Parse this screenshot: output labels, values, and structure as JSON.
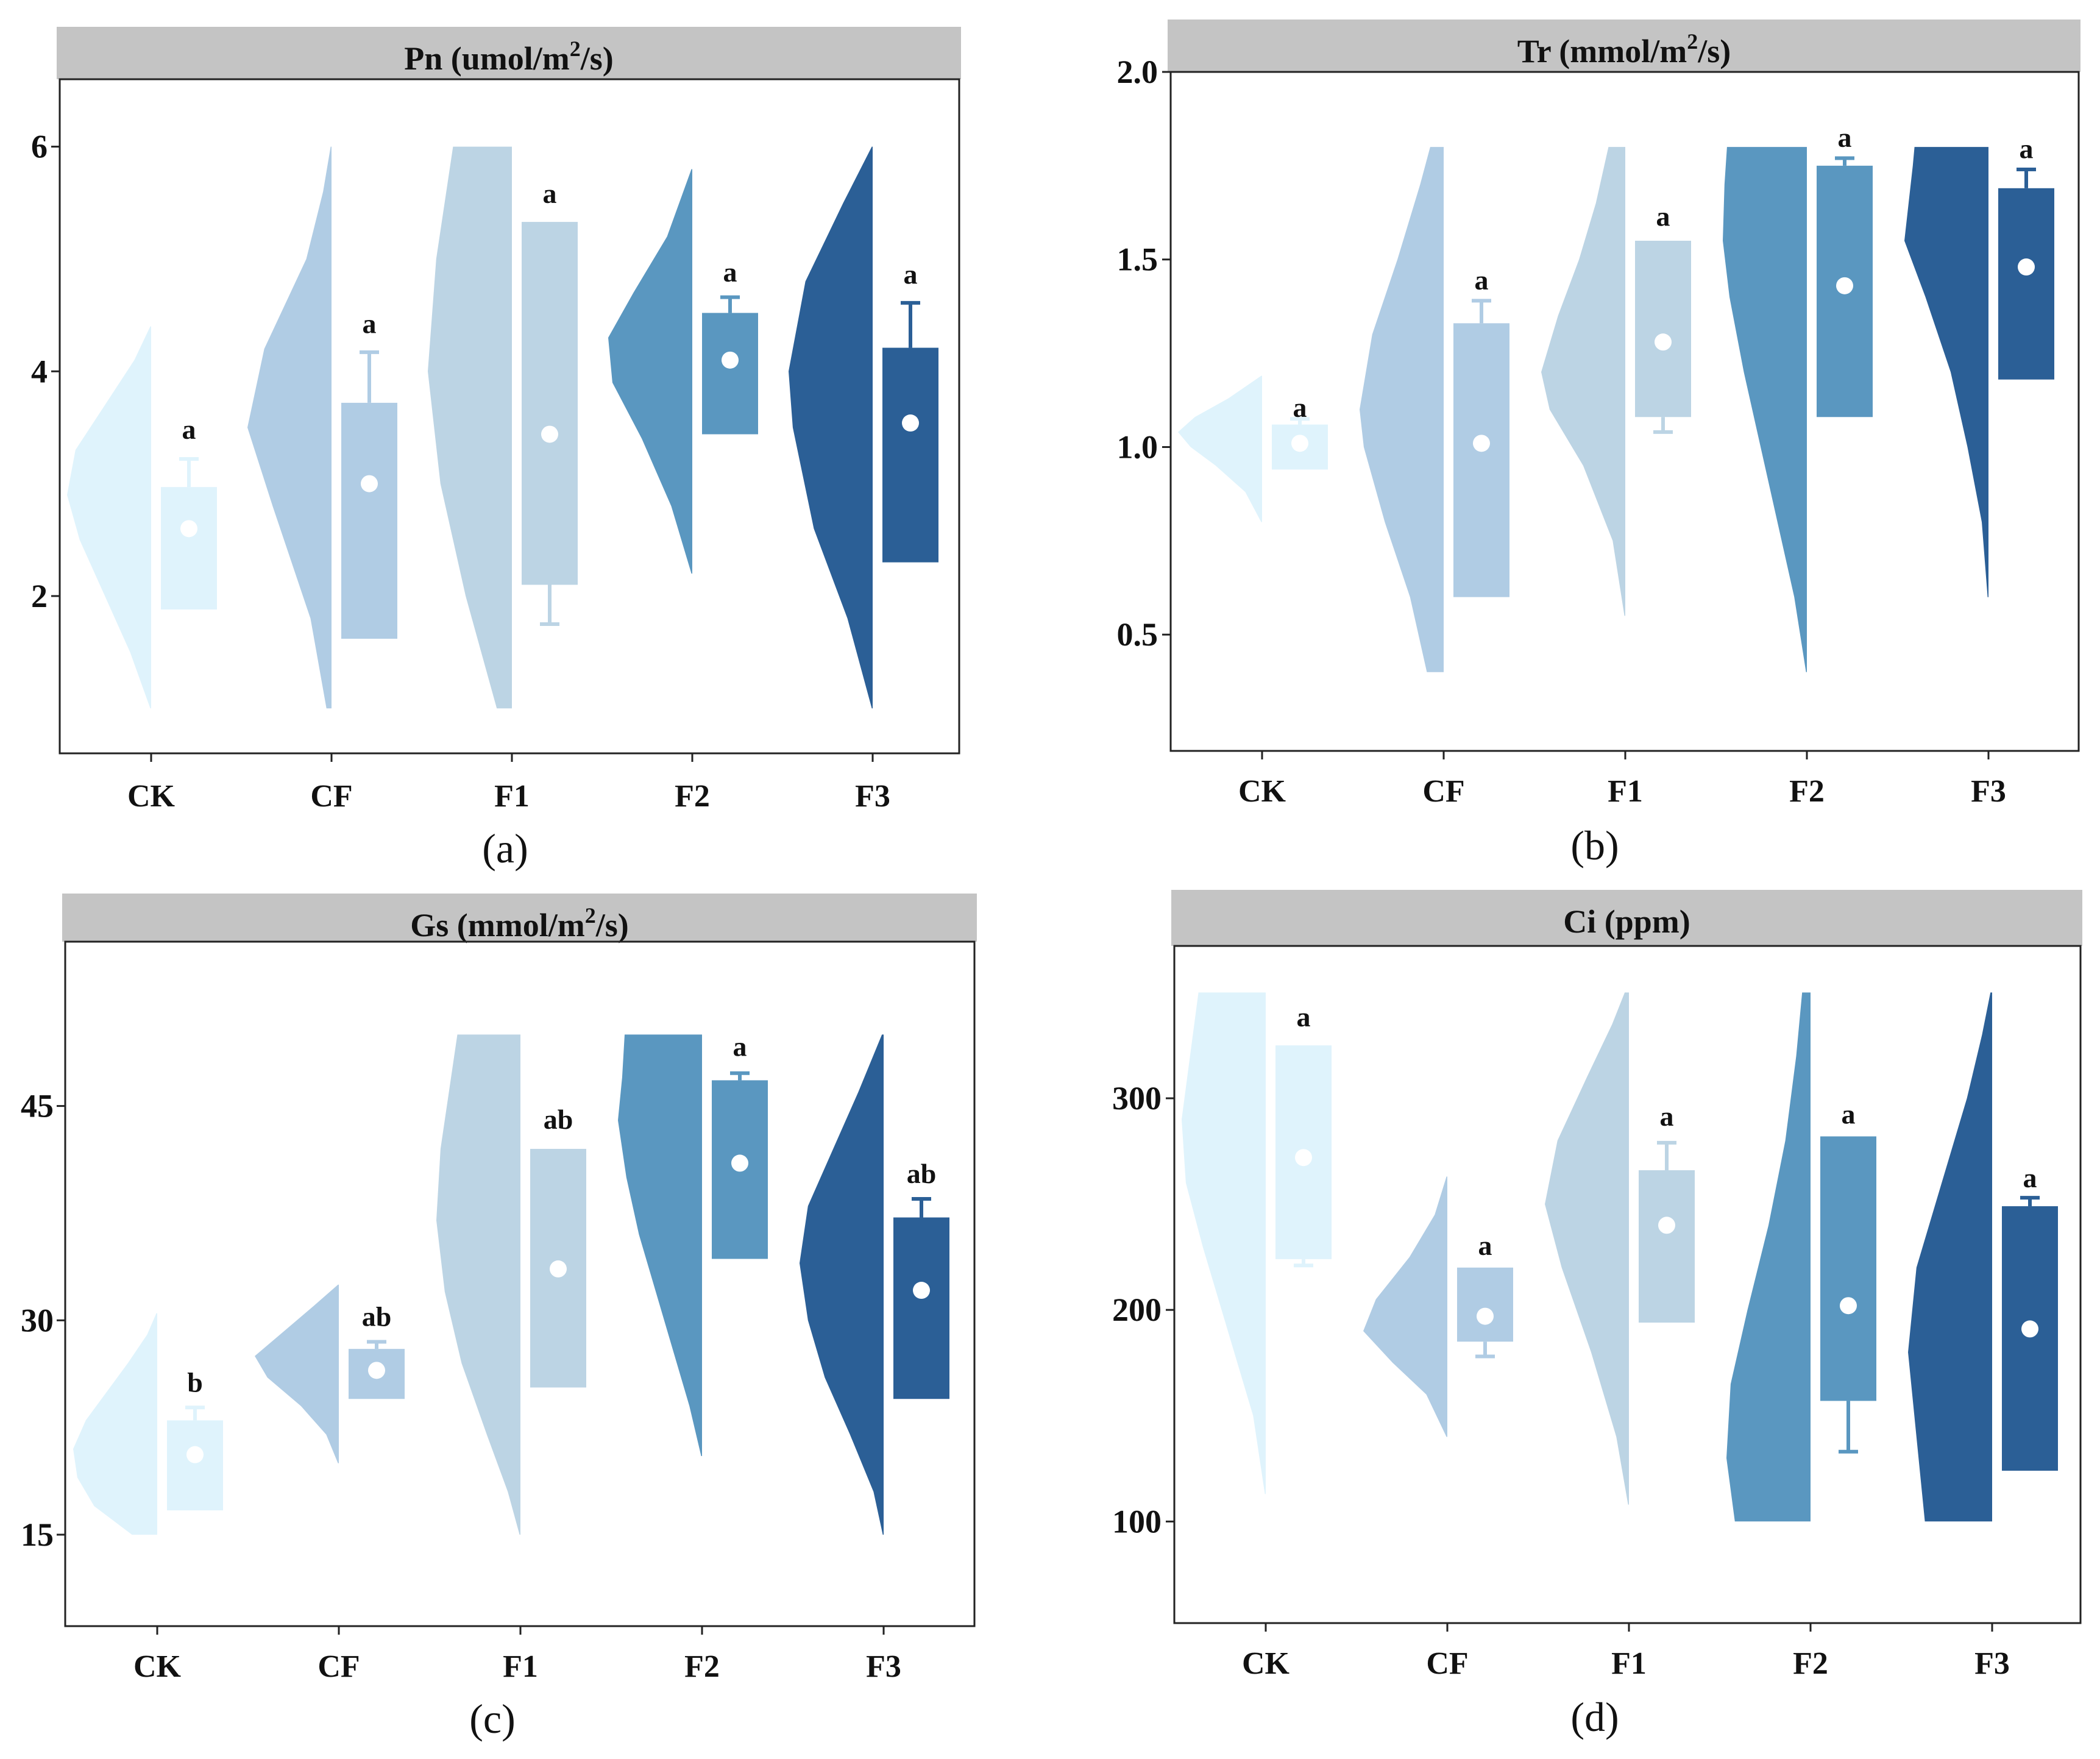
{
  "figure": {
    "groups": [
      "CK",
      "CF",
      "F1",
      "F2",
      "F3"
    ],
    "colors": [
      "#dff3fc",
      "#b0cce4",
      "#bcd4e4",
      "#5a97c0",
      "#2b5f96"
    ]
  },
  "chart_data": [
    {
      "type": "violin-box",
      "panel": "(a)",
      "title_main": "Pn (umol/m",
      "title_sup": "2",
      "title_end": "/s)",
      "categories": [
        "CK",
        "CF",
        "F1",
        "F2",
        "F3"
      ],
      "ylim": [
        0.6,
        6.6
      ],
      "yticks": [
        2,
        4,
        6
      ],
      "ytick_labels": [
        "2",
        "4",
        "6"
      ],
      "violins": [
        {
          "min": 1.0,
          "max": 4.4,
          "dens": [
            [
              1.0,
              0.01
            ],
            [
              1.5,
              0.25
            ],
            [
              2.0,
              0.55
            ],
            [
              2.5,
              0.85
            ],
            [
              2.9,
              1.0
            ],
            [
              3.3,
              0.9
            ],
            [
              3.7,
              0.55
            ],
            [
              4.1,
              0.2
            ],
            [
              4.4,
              0.01
            ]
          ]
        },
        {
          "min": 1.0,
          "max": 6.0,
          "dens": [
            [
              1.0,
              0.06
            ],
            [
              1.8,
              0.25
            ],
            [
              2.8,
              0.7
            ],
            [
              3.5,
              1.0
            ],
            [
              4.2,
              0.8
            ],
            [
              5.0,
              0.3
            ],
            [
              5.6,
              0.1
            ],
            [
              6.0,
              0.01
            ]
          ]
        },
        {
          "min": 1.0,
          "max": 6.0,
          "dens": [
            [
              1.0,
              0.18
            ],
            [
              2.0,
              0.55
            ],
            [
              3.0,
              0.85
            ],
            [
              4.0,
              1.0
            ],
            [
              5.0,
              0.9
            ],
            [
              6.0,
              0.7
            ]
          ]
        },
        {
          "min": 2.2,
          "max": 5.8,
          "dens": [
            [
              2.2,
              0.01
            ],
            [
              2.8,
              0.25
            ],
            [
              3.4,
              0.6
            ],
            [
              3.9,
              0.95
            ],
            [
              4.3,
              1.0
            ],
            [
              4.7,
              0.7
            ],
            [
              5.2,
              0.3
            ],
            [
              5.8,
              0.01
            ]
          ]
        },
        {
          "min": 1.0,
          "max": 6.0,
          "dens": [
            [
              1.0,
              0.01
            ],
            [
              1.8,
              0.3
            ],
            [
              2.6,
              0.7
            ],
            [
              3.5,
              0.95
            ],
            [
              4.0,
              1.0
            ],
            [
              4.8,
              0.8
            ],
            [
              5.5,
              0.35
            ],
            [
              6.0,
              0.01
            ]
          ]
        }
      ],
      "boxes": [
        {
          "q1": 1.88,
          "q3": 2.97,
          "mean": 2.6,
          "whisker_low": null,
          "whisker_high": 3.22
        },
        {
          "q1": 1.62,
          "q3": 3.72,
          "mean": 3.0,
          "whisker_low": null,
          "whisker_high": 4.17
        },
        {
          "q1": 2.1,
          "q3": 5.33,
          "mean": 3.44,
          "whisker_low": 1.75,
          "whisker_high": null
        },
        {
          "q1": 3.44,
          "q3": 4.52,
          "mean": 4.1,
          "whisker_low": null,
          "whisker_high": 4.66
        },
        {
          "q1": 2.3,
          "q3": 4.21,
          "mean": 3.54,
          "whisker_low": null,
          "whisker_high": 4.61
        }
      ],
      "letters": [
        "a",
        "a",
        "a",
        "a",
        "a"
      ],
      "letter_y": [
        3.4,
        4.34,
        5.5,
        4.8,
        4.78
      ]
    },
    {
      "type": "violin-box",
      "panel": "(b)",
      "title_main": "Tr (mmol/m",
      "title_sup": "2",
      "title_end": "/s)",
      "categories": [
        "CK",
        "CF",
        "F1",
        "F2",
        "F3"
      ],
      "ylim": [
        0.19,
        2.0
      ],
      "yticks": [
        0.5,
        1.0,
        1.5,
        2.0
      ],
      "ytick_labels": [
        "0.5",
        "1.0",
        "1.5",
        "2.0"
      ],
      "violins": [
        {
          "min": 0.8,
          "max": 1.19,
          "dens": [
            [
              0.8,
              0.01
            ],
            [
              0.88,
              0.2
            ],
            [
              0.95,
              0.55
            ],
            [
              1.0,
              0.85
            ],
            [
              1.04,
              1.0
            ],
            [
              1.08,
              0.8
            ],
            [
              1.13,
              0.4
            ],
            [
              1.19,
              0.01
            ]
          ]
        },
        {
          "min": 0.4,
          "max": 1.8,
          "dens": [
            [
              0.4,
              0.2
            ],
            [
              0.6,
              0.4
            ],
            [
              0.8,
              0.7
            ],
            [
              1.0,
              0.95
            ],
            [
              1.1,
              1.0
            ],
            [
              1.3,
              0.85
            ],
            [
              1.5,
              0.55
            ],
            [
              1.7,
              0.28
            ],
            [
              1.8,
              0.16
            ]
          ]
        },
        {
          "min": 0.55,
          "max": 1.8,
          "dens": [
            [
              0.55,
              0.01
            ],
            [
              0.75,
              0.15
            ],
            [
              0.95,
              0.5
            ],
            [
              1.1,
              0.9
            ],
            [
              1.2,
              1.0
            ],
            [
              1.35,
              0.8
            ],
            [
              1.5,
              0.55
            ],
            [
              1.65,
              0.35
            ],
            [
              1.8,
              0.2
            ]
          ]
        },
        {
          "min": 0.4,
          "max": 1.8,
          "dens": [
            [
              0.4,
              0.01
            ],
            [
              0.6,
              0.15
            ],
            [
              0.8,
              0.35
            ],
            [
              1.0,
              0.55
            ],
            [
              1.2,
              0.75
            ],
            [
              1.4,
              0.92
            ],
            [
              1.55,
              1.0
            ],
            [
              1.7,
              0.98
            ],
            [
              1.8,
              0.95
            ]
          ]
        },
        {
          "min": 0.6,
          "max": 1.8,
          "dens": [
            [
              0.6,
              0.01
            ],
            [
              0.8,
              0.08
            ],
            [
              1.0,
              0.25
            ],
            [
              1.2,
              0.45
            ],
            [
              1.4,
              0.75
            ],
            [
              1.55,
              1.0
            ],
            [
              1.65,
              0.95
            ],
            [
              1.75,
              0.9
            ],
            [
              1.8,
              0.88
            ]
          ]
        }
      ],
      "boxes": [
        {
          "q1": 0.94,
          "q3": 1.06,
          "mean": 1.01,
          "whisker_low": null,
          "whisker_high": 1.075
        },
        {
          "q1": 0.6,
          "q3": 1.33,
          "mean": 1.01,
          "whisker_low": null,
          "whisker_high": 1.39
        },
        {
          "q1": 1.08,
          "q3": 1.55,
          "mean": 1.28,
          "whisker_low": 1.04,
          "whisker_high": null
        },
        {
          "q1": 1.08,
          "q3": 1.75,
          "mean": 1.43,
          "whisker_low": null,
          "whisker_high": 1.77
        },
        {
          "q1": 1.18,
          "q3": 1.69,
          "mean": 1.48,
          "whisker_low": null,
          "whisker_high": 1.74
        }
      ],
      "letters": [
        "a",
        "a",
        "a",
        "a",
        "a"
      ],
      "letter_y": [
        1.08,
        1.42,
        1.59,
        1.8,
        1.77
      ]
    },
    {
      "type": "violin-box",
      "panel": "(c)",
      "title_main": "Gs (mmol/m",
      "title_sup": "2",
      "title_end": "/s)",
      "categories": [
        "CK",
        "CF",
        "F1",
        "F2",
        "F3"
      ],
      "ylim": [
        8.6,
        56.5
      ],
      "yticks": [
        15,
        30,
        45
      ],
      "ytick_labels": [
        "15",
        "30",
        "45"
      ],
      "violins": [
        {
          "min": 15.0,
          "max": 30.5,
          "dens": [
            [
              15.0,
              0.3
            ],
            [
              17.0,
              0.75
            ],
            [
              19.0,
              0.95
            ],
            [
              21.0,
              1.0
            ],
            [
              23.0,
              0.85
            ],
            [
              25.0,
              0.6
            ],
            [
              27.0,
              0.35
            ],
            [
              29.0,
              0.12
            ],
            [
              30.5,
              0.01
            ]
          ]
        },
        {
          "min": 20.0,
          "max": 32.5,
          "dens": [
            [
              20.0,
              0.01
            ],
            [
              22.0,
              0.15
            ],
            [
              24.0,
              0.45
            ],
            [
              26.0,
              0.85
            ],
            [
              27.5,
              1.0
            ],
            [
              29.0,
              0.7
            ],
            [
              31.0,
              0.3
            ],
            [
              32.5,
              0.01
            ]
          ]
        },
        {
          "min": 15.0,
          "max": 50.0,
          "dens": [
            [
              15.0,
              0.01
            ],
            [
              18.0,
              0.15
            ],
            [
              22.0,
              0.4
            ],
            [
              27.0,
              0.7
            ],
            [
              32.0,
              0.9
            ],
            [
              37.0,
              1.0
            ],
            [
              42.0,
              0.95
            ],
            [
              46.0,
              0.85
            ],
            [
              50.0,
              0.75
            ]
          ]
        },
        {
          "min": 20.5,
          "max": 50.0,
          "dens": [
            [
              20.5,
              0.01
            ],
            [
              24.0,
              0.15
            ],
            [
              28.0,
              0.35
            ],
            [
              32.0,
              0.55
            ],
            [
              36.0,
              0.75
            ],
            [
              40.0,
              0.9
            ],
            [
              44.0,
              1.0
            ],
            [
              47.0,
              0.95
            ],
            [
              50.0,
              0.92
            ]
          ]
        },
        {
          "min": 15.0,
          "max": 50.0,
          "dens": [
            [
              15.0,
              0.01
            ],
            [
              18.0,
              0.12
            ],
            [
              22.0,
              0.4
            ],
            [
              26.0,
              0.7
            ],
            [
              30.0,
              0.9
            ],
            [
              34.0,
              1.0
            ],
            [
              38.0,
              0.9
            ],
            [
              42.0,
              0.6
            ],
            [
              46.0,
              0.3
            ],
            [
              50.0,
              0.02
            ]
          ]
        }
      ],
      "boxes": [
        {
          "q1": 16.7,
          "q3": 23.0,
          "mean": 20.6,
          "whisker_low": null,
          "whisker_high": 23.9
        },
        {
          "q1": 24.5,
          "q3": 28.0,
          "mean": 26.5,
          "whisker_low": null,
          "whisker_high": 28.5
        },
        {
          "q1": 25.3,
          "q3": 42.0,
          "mean": 33.6,
          "whisker_low": null,
          "whisker_high": null
        },
        {
          "q1": 34.3,
          "q3": 46.8,
          "mean": 41.0,
          "whisker_low": null,
          "whisker_high": 47.3
        },
        {
          "q1": 24.5,
          "q3": 37.2,
          "mean": 32.1,
          "whisker_low": null,
          "whisker_high": 38.5
        }
      ],
      "letters": [
        "b",
        "ab",
        "ab",
        "a",
        "ab"
      ],
      "letter_y": [
        25.0,
        29.6,
        43.4,
        48.5,
        39.6
      ]
    },
    {
      "type": "violin-box",
      "panel": "(d)",
      "title_main": "Ci (ppm)",
      "title_sup": "",
      "title_end": "",
      "categories": [
        "CK",
        "CF",
        "F1",
        "F2",
        "F3"
      ],
      "ylim": [
        52,
        372
      ],
      "yticks": [
        100,
        200,
        300
      ],
      "ytick_labels": [
        "100",
        "200",
        "300"
      ],
      "violins": [
        {
          "min": 113.0,
          "max": 350.0,
          "dens": [
            [
              113.0,
              0.01
            ],
            [
              150.0,
              0.15
            ],
            [
              190.0,
              0.45
            ],
            [
              230.0,
              0.75
            ],
            [
              260.0,
              0.95
            ],
            [
              290.0,
              1.0
            ],
            [
              320.0,
              0.9
            ],
            [
              350.0,
              0.8
            ]
          ]
        },
        {
          "min": 140.0,
          "max": 263.0,
          "dens": [
            [
              140.0,
              0.01
            ],
            [
              160.0,
              0.25
            ],
            [
              175.0,
              0.65
            ],
            [
              190.0,
              1.0
            ],
            [
              205.0,
              0.85
            ],
            [
              225.0,
              0.45
            ],
            [
              245.0,
              0.15
            ],
            [
              263.0,
              0.01
            ]
          ]
        },
        {
          "min": 108.0,
          "max": 350.0,
          "dens": [
            [
              108.0,
              0.01
            ],
            [
              140.0,
              0.15
            ],
            [
              180.0,
              0.45
            ],
            [
              220.0,
              0.8
            ],
            [
              250.0,
              1.0
            ],
            [
              280.0,
              0.85
            ],
            [
              310.0,
              0.5
            ],
            [
              335.0,
              0.2
            ],
            [
              350.0,
              0.05
            ]
          ]
        },
        {
          "min": 100.0,
          "max": 350.0,
          "dens": [
            [
              100.0,
              0.9
            ],
            [
              130.0,
              1.0
            ],
            [
              165.0,
              0.95
            ],
            [
              200.0,
              0.75
            ],
            [
              240.0,
              0.5
            ],
            [
              280.0,
              0.3
            ],
            [
              320.0,
              0.17
            ],
            [
              350.0,
              0.1
            ]
          ]
        },
        {
          "min": 100.0,
          "max": 350.0,
          "dens": [
            [
              100.0,
              0.8
            ],
            [
              140.0,
              0.9
            ],
            [
              180.0,
              1.0
            ],
            [
              220.0,
              0.9
            ],
            [
              260.0,
              0.6
            ],
            [
              300.0,
              0.3
            ],
            [
              330.0,
              0.12
            ],
            [
              350.0,
              0.02
            ]
          ]
        }
      ],
      "boxes": [
        {
          "q1": 224.0,
          "q3": 325.0,
          "mean": 272.0,
          "whisker_low": 221.0,
          "whisker_high": null
        },
        {
          "q1": 185.0,
          "q3": 220.0,
          "mean": 197.0,
          "whisker_low": 178.0,
          "whisker_high": null
        },
        {
          "q1": 194.0,
          "q3": 266.0,
          "mean": 240.0,
          "whisker_low": null,
          "whisker_high": 279.0
        },
        {
          "q1": 157.0,
          "q3": 282.0,
          "mean": 202.0,
          "whisker_low": 133.0,
          "whisker_high": null
        },
        {
          "q1": 124.0,
          "q3": 249.0,
          "mean": 191.0,
          "whisker_low": null,
          "whisker_high": 253.0
        }
      ],
      "letters": [
        "a",
        "a",
        "a",
        "a",
        "a"
      ],
      "letter_y": [
        334.0,
        226.0,
        287.0,
        288.0,
        258.0
      ]
    }
  ]
}
